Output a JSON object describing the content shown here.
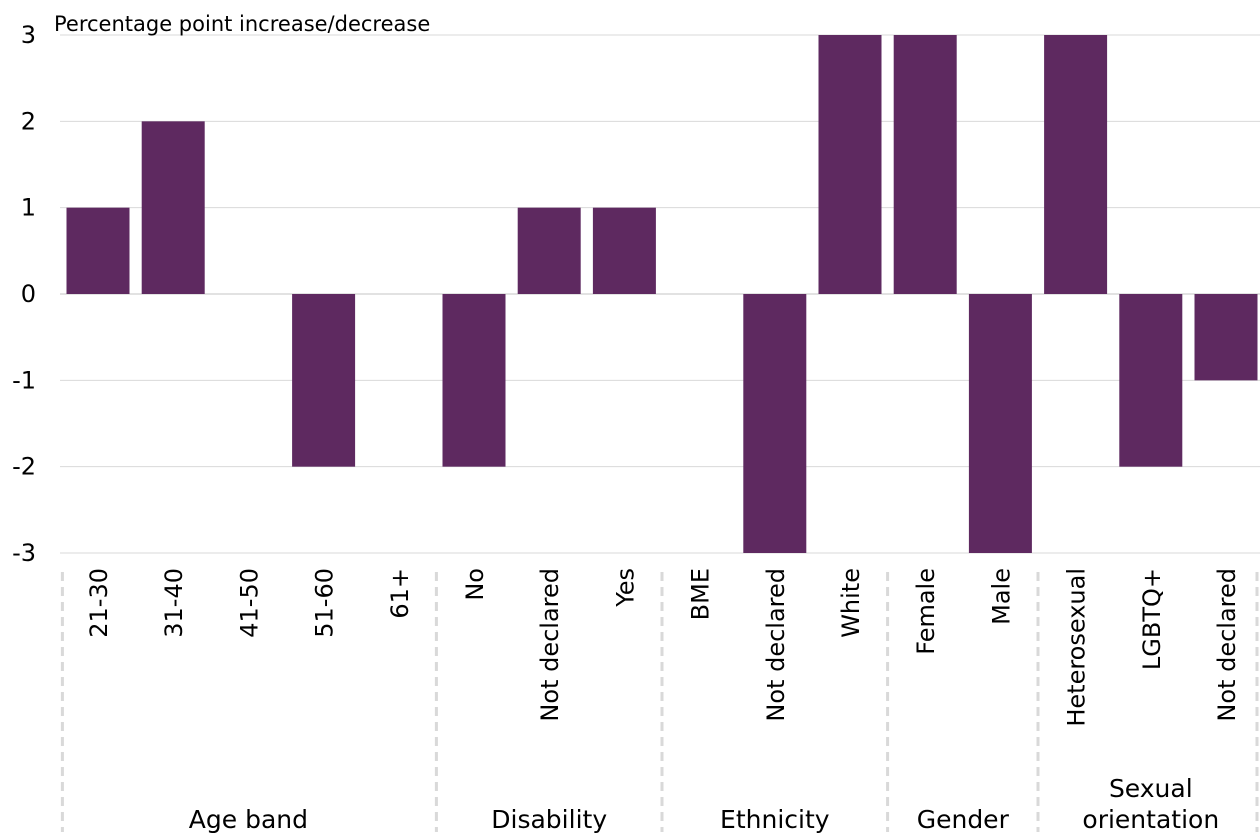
{
  "chart_data": {
    "type": "bar",
    "ylabel": "Percentage point increase/decrease",
    "ylim": [
      -3,
      3
    ],
    "yticks": [
      3,
      2,
      1,
      0,
      -1,
      -2,
      -3
    ],
    "grid": true,
    "bar_color": "#5e2960",
    "groups": [
      {
        "label": "Age band",
        "categories": [
          "21-30",
          "31-40",
          "41-50",
          "51-60",
          "61+"
        ],
        "values": [
          1,
          2,
          0,
          -2,
          0
        ]
      },
      {
        "label": "Disability",
        "categories": [
          "No",
          "Not declared",
          "Yes"
        ],
        "values": [
          -2,
          1,
          1
        ]
      },
      {
        "label": "Ethnicity",
        "categories": [
          "BME",
          "Not declared",
          "White"
        ],
        "values": [
          0,
          -3,
          3
        ]
      },
      {
        "label": "Gender",
        "categories": [
          "Female",
          "Male"
        ],
        "values": [
          3,
          -3
        ]
      },
      {
        "label": "Sexual orientation",
        "label_lines": [
          "Sexual",
          "orientation"
        ],
        "categories": [
          "Heterosexual",
          "LGBTQ+",
          "Not declared"
        ],
        "values": [
          3,
          -2,
          -1
        ]
      }
    ]
  }
}
